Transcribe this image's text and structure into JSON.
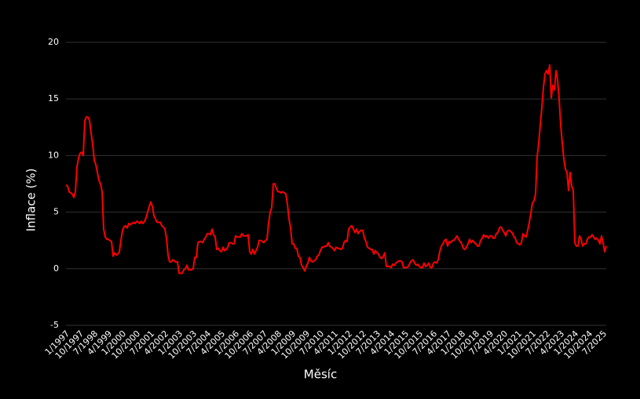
{
  "chart_data": {
    "type": "line",
    "x_label": "Měsíc",
    "y_label": "Inflace (%)",
    "color": "#ff0000",
    "ylim": [
      -5,
      20
    ],
    "yticks": [
      -5,
      0,
      5,
      10,
      15,
      20
    ],
    "grid": true,
    "categories": [
      "1/1997",
      null,
      null,
      null,
      null,
      null,
      null,
      null,
      null,
      "10/1997",
      null,
      null,
      null,
      null,
      null,
      null,
      null,
      null,
      "7/1998",
      null,
      null,
      null,
      null,
      null,
      null,
      null,
      null,
      "4/1999",
      null,
      null,
      null,
      null,
      null,
      null,
      null,
      null,
      "1/2000",
      null,
      null,
      null,
      null,
      null,
      null,
      null,
      null,
      "10/2000",
      null,
      null,
      null,
      null,
      null,
      null,
      null,
      null,
      "7/2001",
      null,
      null,
      null,
      null,
      null,
      null,
      null,
      null,
      "4/2002",
      null,
      null,
      null,
      null,
      null,
      null,
      null,
      null,
      "1/2003",
      null,
      null,
      null,
      null,
      null,
      null,
      null,
      null,
      "10/2003",
      null,
      null,
      null,
      null,
      null,
      null,
      null,
      null,
      "7/2004",
      null,
      null,
      null,
      null,
      null,
      null,
      null,
      null,
      "4/2005",
      null,
      null,
      null,
      null,
      null,
      null,
      null,
      null,
      "1/2006",
      null,
      null,
      null,
      null,
      null,
      null,
      null,
      null,
      "10/2006",
      null,
      null,
      null,
      null,
      null,
      null,
      null,
      null,
      "7/2007",
      null,
      null,
      null,
      null,
      null,
      null,
      null,
      null,
      "4/2008",
      null,
      null,
      null,
      null,
      null,
      null,
      null,
      null,
      "1/2009",
      null,
      null,
      null,
      null,
      null,
      null,
      null,
      null,
      "10/2009",
      null,
      null,
      null,
      null,
      null,
      null,
      null,
      null,
      "7/2010",
      null,
      null,
      null,
      null,
      null,
      null,
      null,
      null,
      "4/2011",
      null,
      null,
      null,
      null,
      null,
      null,
      null,
      null,
      "1/2012",
      null,
      null,
      null,
      null,
      null,
      null,
      null,
      null,
      "10/2012",
      null,
      null,
      null,
      null,
      null,
      null,
      null,
      null,
      "7/2013",
      null,
      null,
      null,
      null,
      null,
      null,
      null,
      null,
      "4/2014",
      null,
      null,
      null,
      null,
      null,
      null,
      null,
      null,
      "1/2015",
      null,
      null,
      null,
      null,
      null,
      null,
      null,
      null,
      "10/2015",
      null,
      null,
      null,
      null,
      null,
      null,
      null,
      null,
      "7/2016",
      null,
      null,
      null,
      null,
      null,
      null,
      null,
      null,
      "4/2017",
      null,
      null,
      null,
      null,
      null,
      null,
      null,
      null,
      "1/2018",
      null,
      null,
      null,
      null,
      null,
      null,
      null,
      null,
      "10/2018",
      null,
      null,
      null,
      null,
      null,
      null,
      null,
      null,
      "7/2019",
      null,
      null,
      null,
      null,
      null,
      null,
      null,
      null,
      "4/2020",
      null,
      null,
      null,
      null,
      null,
      null,
      null,
      null,
      "1/2021",
      null,
      null,
      null,
      null,
      null,
      null,
      null,
      null,
      "10/2021",
      null,
      null,
      null,
      null,
      null,
      null,
      null,
      null,
      "7/2022",
      null,
      null,
      null,
      null,
      null,
      null,
      null,
      null,
      "4/2023",
      null,
      null,
      null,
      null,
      null,
      null,
      null,
      null,
      "1/2024",
      null,
      null,
      null,
      null,
      null,
      null,
      null,
      null,
      "10/2024",
      null,
      null,
      null,
      null,
      null,
      null,
      null,
      null,
      "7/2025",
      null,
      null
    ],
    "values": [
      7.4,
      7.3,
      6.8,
      6.7,
      6.6,
      6.3,
      6.8,
      9.0,
      9.8,
      10.2,
      10.3,
      10.0,
      13.1,
      13.4,
      13.4,
      13.1,
      12.0,
      11.0,
      9.6,
      9.2,
      8.5,
      7.8,
      7.5,
      6.8,
      3.5,
      2.8,
      2.6,
      2.6,
      2.5,
      2.4,
      1.1,
      1.4,
      1.2,
      1.3,
      1.5,
      2.5,
      3.4,
      3.7,
      3.8,
      3.6,
      4.0,
      3.9,
      4.0,
      4.1,
      4.0,
      4.2,
      4.1,
      4.0,
      4.2,
      4.0,
      4.2,
      4.5,
      5.0,
      5.5,
      5.9,
      5.5,
      4.7,
      4.4,
      4.1,
      4.1,
      4.1,
      3.8,
      3.7,
      3.5,
      2.7,
      1.2,
      0.6,
      0.6,
      0.8,
      0.7,
      0.6,
      0.6,
      -0.4,
      -0.4,
      -0.4,
      -0.1,
      0.0,
      0.3,
      -0.1,
      -0.1,
      -0.1,
      0.0,
      1.0,
      1.0,
      2.3,
      2.4,
      2.4,
      2.3,
      2.6,
      2.8,
      3.1,
      3.1,
      3.0,
      3.5,
      3.0,
      2.8,
      1.7,
      1.8,
      1.6,
      1.5,
      1.9,
      1.6,
      1.7,
      1.9,
      2.3,
      2.3,
      2.2,
      2.2,
      2.9,
      2.8,
      2.8,
      2.8,
      3.1,
      2.9,
      2.9,
      2.9,
      3.0,
      1.5,
      1.3,
      1.7,
      1.3,
      1.6,
      1.9,
      2.5,
      2.5,
      2.4,
      2.3,
      2.5,
      2.6,
      4.0,
      5.0,
      5.4,
      7.5,
      7.5,
      7.1,
      6.8,
      6.8,
      6.7,
      6.8,
      6.7,
      6.6,
      5.7,
      4.4,
      3.6,
      2.2,
      2.2,
      1.8,
      1.8,
      1.1,
      1.0,
      0.3,
      0.1,
      -0.2,
      0.2,
      0.5,
      1.0,
      0.7,
      0.6,
      0.7,
      0.8,
      1.1,
      1.2,
      1.6,
      1.9,
      1.9,
      2.0,
      2.0,
      2.3,
      2.0,
      1.9,
      1.8,
      1.6,
      1.9,
      1.8,
      1.8,
      1.7,
      1.8,
      2.3,
      2.5,
      2.4,
      3.5,
      3.7,
      3.8,
      3.5,
      3.2,
      3.5,
      3.1,
      3.3,
      3.4,
      3.4,
      2.7,
      2.4,
      1.9,
      1.8,
      1.7,
      1.7,
      1.3,
      1.6,
      1.4,
      1.3,
      1.0,
      0.9,
      1.1,
      1.4,
      0.2,
      0.2,
      0.2,
      0.1,
      0.4,
      0.3,
      0.5,
      0.6,
      0.7,
      0.7,
      0.6,
      0.1,
      0.1,
      0.1,
      0.2,
      0.5,
      0.7,
      0.8,
      0.5,
      0.3,
      0.4,
      0.2,
      0.1,
      0.1,
      0.5,
      0.2,
      0.3,
      0.5,
      0.1,
      0.1,
      0.5,
      0.6,
      0.5,
      0.8,
      1.5,
      2.0,
      2.2,
      2.5,
      2.6,
      2.0,
      2.4,
      2.3,
      2.5,
      2.5,
      2.7,
      2.9,
      2.6,
      2.4,
      2.2,
      1.8,
      1.7,
      1.9,
      2.2,
      2.6,
      2.3,
      2.5,
      2.3,
      2.2,
      2.0,
      2.0,
      2.5,
      2.7,
      3.0,
      2.8,
      2.9,
      2.7,
      2.9,
      2.9,
      2.7,
      2.7,
      3.1,
      3.2,
      3.6,
      3.7,
      3.4,
      3.2,
      2.9,
      3.3,
      3.4,
      3.3,
      3.2,
      2.9,
      2.7,
      2.3,
      2.2,
      2.1,
      2.3,
      3.1,
      2.9,
      2.8,
      3.4,
      4.1,
      4.9,
      5.8,
      6.0,
      6.6,
      9.9,
      11.1,
      12.7,
      14.2,
      16.0,
      17.2,
      17.5,
      17.2,
      18.0,
      15.1,
      16.2,
      15.8,
      17.5,
      16.7,
      15.0,
      12.7,
      11.1,
      9.7,
      8.8,
      8.5,
      6.9,
      8.5,
      7.3,
      6.9,
      2.3,
      2.0,
      2.0,
      2.9,
      2.6,
      2.0,
      2.2,
      2.2,
      2.6,
      2.8,
      2.8,
      3.0,
      2.8,
      2.6,
      2.7,
      2.5,
      2.2,
      2.9,
      2.3,
      1.5,
      2.0
    ]
  }
}
